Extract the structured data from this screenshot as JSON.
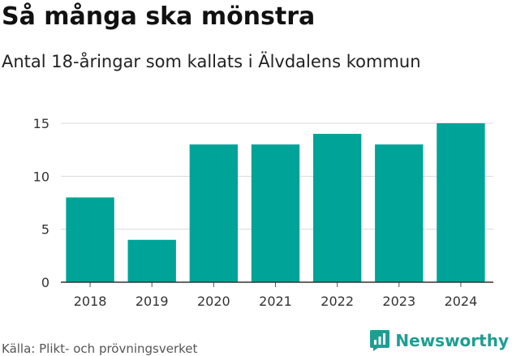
{
  "chart_data": {
    "type": "bar",
    "title": "Så många ska mönstra",
    "subtitle": "Antal 18-åringar som kallats i Älvdalens kommun",
    "categories": [
      "2018",
      "2019",
      "2020",
      "2021",
      "2022",
      "2023",
      "2024"
    ],
    "values": [
      8,
      4,
      13,
      13,
      14,
      13,
      15
    ],
    "xlabel": "",
    "ylabel": "",
    "ylim": [
      0,
      15
    ],
    "yticks": [
      0,
      5,
      10,
      15
    ],
    "grid": true,
    "bar_color": "#00a398"
  },
  "footer": {
    "source": "Källa: Plikt- och prövningsverket",
    "brand": "Newsworthy",
    "brand_color": "#1e9e92",
    "brand_icon": "bar-chart-speech-bubble-icon"
  }
}
